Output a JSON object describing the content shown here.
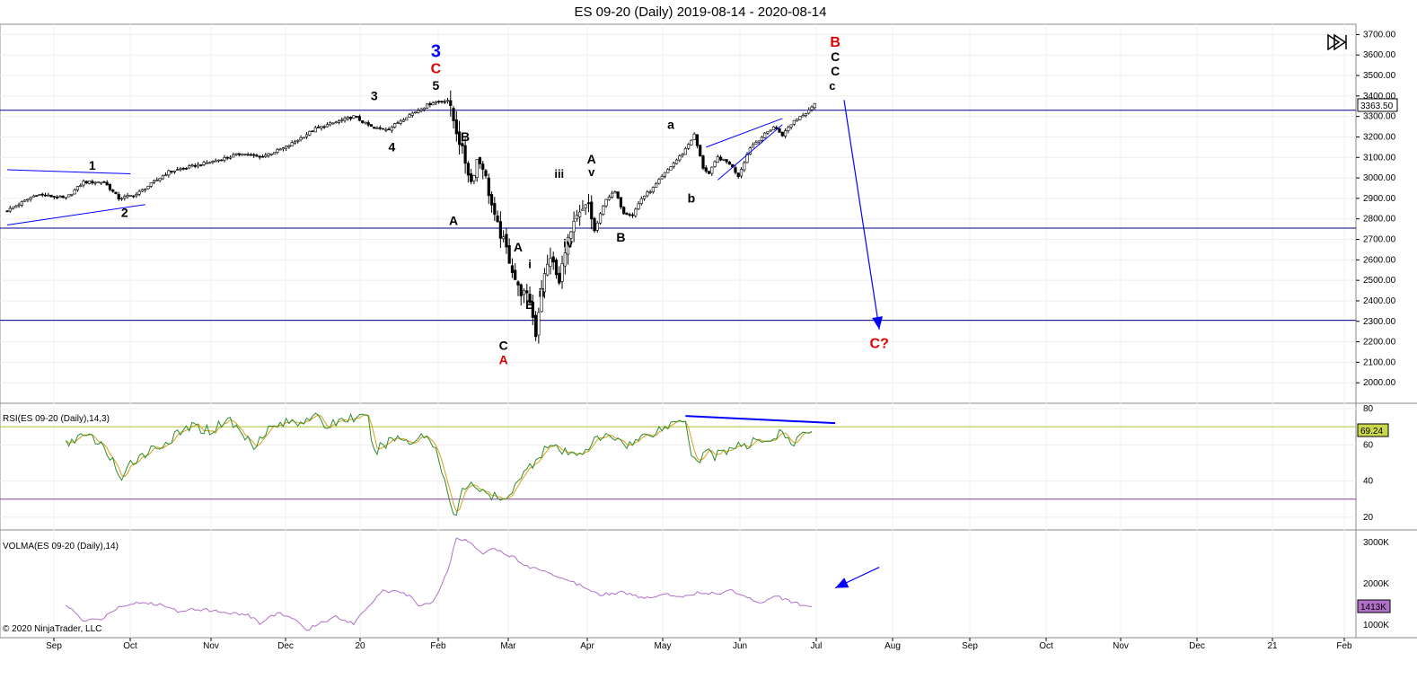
{
  "title": "ES 09-20 (Daily)  2019-08-14 - 2020-08-14",
  "copyright": "© 2020 NinjaTrader, LLC",
  "last_price_badge": "3363.50",
  "colors": {
    "candle_up": "#ffffff",
    "candle_down": "#000000",
    "hline": "#00008b",
    "annotation_blue": "#0000ff",
    "label_red": "#e00000",
    "label_black": "#000000",
    "rsi_line": "#2e8b2e",
    "rsi_avg": "#d4a017",
    "rsi_upper": "#b0c030",
    "rsi_lower": "#8040a0",
    "volma": "#b070c8"
  },
  "chart_data": [
    {
      "type": "candlestick",
      "name": "price",
      "ylim": [
        1900,
        3750
      ],
      "y_ticks": [
        "3700.00",
        "3600.00",
        "3500.00",
        "3400.00",
        "3300.00",
        "3200.00",
        "3100.00",
        "3000.00",
        "2900.00",
        "2800.00",
        "2700.00",
        "2600.00",
        "2500.00",
        "2400.00",
        "2300.00",
        "2200.00",
        "2100.00",
        "2000.00"
      ],
      "x_ticks": [
        "Sep",
        "Oct",
        "Nov",
        "Dec",
        "20",
        "Feb",
        "Mar",
        "Apr",
        "May",
        "Jun",
        "Jul",
        "Aug",
        "Sep",
        "Oct",
        "Nov",
        "Dec",
        "21",
        "Feb"
      ],
      "horizontal_lines": [
        3330,
        2755,
        2305
      ],
      "close_waypoints": [
        [
          0,
          2840
        ],
        [
          10,
          2920
        ],
        [
          20,
          2900
        ],
        [
          26,
          2980
        ],
        [
          33,
          2980
        ],
        [
          38,
          2900
        ],
        [
          44,
          2920
        ],
        [
          55,
          3030
        ],
        [
          70,
          3080
        ],
        [
          80,
          3120
        ],
        [
          86,
          3100
        ],
        [
          95,
          3150
        ],
        [
          105,
          3240
        ],
        [
          118,
          3300
        ],
        [
          125,
          3240
        ],
        [
          130,
          3240
        ],
        [
          136,
          3300
        ],
        [
          145,
          3370
        ],
        [
          150,
          3380
        ],
        [
          154,
          3180
        ],
        [
          158,
          2980
        ],
        [
          160,
          3090
        ],
        [
          162,
          3060
        ],
        [
          166,
          2800
        ],
        [
          170,
          2650
        ],
        [
          174,
          2460
        ],
        [
          178,
          2400
        ],
        [
          180,
          2240
        ],
        [
          182,
          2470
        ],
        [
          185,
          2620
        ],
        [
          188,
          2480
        ],
        [
          190,
          2660
        ],
        [
          194,
          2800
        ],
        [
          198,
          2870
        ],
        [
          200,
          2740
        ],
        [
          204,
          2900
        ],
        [
          207,
          2930
        ],
        [
          210,
          2830
        ],
        [
          213,
          2820
        ],
        [
          216,
          2900
        ],
        [
          220,
          2950
        ],
        [
          225,
          3040
        ],
        [
          230,
          3120
        ],
        [
          234,
          3210
        ],
        [
          237,
          3050
        ],
        [
          239,
          3020
        ],
        [
          242,
          3100
        ],
        [
          246,
          3070
        ],
        [
          249,
          3010
        ],
        [
          253,
          3150
        ],
        [
          257,
          3200
        ],
        [
          261,
          3250
        ],
        [
          264,
          3210
        ],
        [
          268,
          3280
        ],
        [
          272,
          3320
        ],
        [
          275,
          3363.5
        ]
      ],
      "labels": [
        {
          "text": "1",
          "t": 29,
          "v": 3040,
          "color": "black",
          "size": 14
        },
        {
          "text": "2",
          "t": 40,
          "v": 2810,
          "color": "black",
          "size": 14
        },
        {
          "text": "3",
          "t": 125,
          "v": 3380,
          "color": "black",
          "size": 14
        },
        {
          "text": "4",
          "t": 131,
          "v": 3130,
          "color": "black",
          "size": 14
        },
        {
          "text": "3",
          "t": 146,
          "v": 3590,
          "color": "blue",
          "size": 20
        },
        {
          "text": "C",
          "t": 146,
          "v": 3510,
          "color": "red",
          "size": 16
        },
        {
          "text": "5",
          "t": 146,
          "v": 3430,
          "color": "black",
          "size": 14
        },
        {
          "text": "B",
          "t": 156,
          "v": 3180,
          "color": "black",
          "size": 14
        },
        {
          "text": "A",
          "t": 152,
          "v": 2770,
          "color": "black",
          "size": 14
        },
        {
          "text": "A",
          "t": 174,
          "v": 2640,
          "color": "black",
          "size": 14
        },
        {
          "text": "i",
          "t": 178,
          "v": 2560,
          "color": "black",
          "size": 13
        },
        {
          "text": "ii",
          "t": 182,
          "v": 2420,
          "color": "black",
          "size": 13
        },
        {
          "text": "B",
          "t": 178,
          "v": 2360,
          "color": "black",
          "size": 14
        },
        {
          "text": "C",
          "t": 169,
          "v": 2160,
          "color": "black",
          "size": 14
        },
        {
          "text": "A",
          "t": 169,
          "v": 2090,
          "color": "red",
          "size": 14
        },
        {
          "text": "iii",
          "t": 188,
          "v": 3000,
          "color": "black",
          "size": 13
        },
        {
          "text": "iv",
          "t": 191,
          "v": 2660,
          "color": "black",
          "size": 13
        },
        {
          "text": "A",
          "t": 199,
          "v": 3070,
          "color": "black",
          "size": 14
        },
        {
          "text": "v",
          "t": 199,
          "v": 3010,
          "color": "black",
          "size": 13
        },
        {
          "text": "B",
          "t": 209,
          "v": 2690,
          "color": "black",
          "size": 14
        },
        {
          "text": "a",
          "t": 226,
          "v": 3240,
          "color": "black",
          "size": 14
        },
        {
          "text": "b",
          "t": 233,
          "v": 2880,
          "color": "black",
          "size": 14
        },
        {
          "text": "B",
          "t": 282,
          "v": 3640,
          "color": "red",
          "size": 16
        },
        {
          "text": "C",
          "t": 282,
          "v": 3570,
          "color": "black",
          "size": 14
        },
        {
          "text": "C",
          "t": 282,
          "v": 3500,
          "color": "black",
          "size": 14
        },
        {
          "text": "c",
          "t": 281,
          "v": 3430,
          "color": "black",
          "size": 13
        },
        {
          "text": "C?",
          "t": 297,
          "v": 2170,
          "color": "red",
          "size": 16
        }
      ],
      "trendlines": [
        {
          "from": [
            0,
            3040
          ],
          "to": [
            42,
            3020
          ]
        },
        {
          "from": [
            0,
            2770
          ],
          "to": [
            47,
            2870
          ]
        },
        {
          "from": [
            238,
            3150
          ],
          "to": [
            264,
            3290
          ]
        },
        {
          "from": [
            242,
            2990
          ],
          "to": [
            264,
            3260
          ]
        }
      ],
      "arrow": {
        "from": [
          285,
          3380
        ],
        "to": [
          297,
          2260
        ]
      }
    },
    {
      "type": "line",
      "name": "RSI(ES 09-20 (Daily),14,3)",
      "ylim": [
        13,
        83
      ],
      "y_ticks": [
        "80",
        "60",
        "40",
        "20"
      ],
      "horizontal_lines": [
        70,
        30
      ],
      "last_value": "69.24",
      "waypoints": [
        [
          20,
          60
        ],
        [
          24,
          65
        ],
        [
          30,
          63
        ],
        [
          36,
          52
        ],
        [
          39,
          38
        ],
        [
          42,
          50
        ],
        [
          46,
          55
        ],
        [
          55,
          62
        ],
        [
          62,
          70
        ],
        [
          70,
          68
        ],
        [
          75,
          75
        ],
        [
          80,
          66
        ],
        [
          84,
          60
        ],
        [
          88,
          68
        ],
        [
          94,
          72
        ],
        [
          100,
          73
        ],
        [
          104,
          77
        ],
        [
          108,
          70
        ],
        [
          114,
          74
        ],
        [
          118,
          75
        ],
        [
          123,
          74
        ],
        [
          125,
          55
        ],
        [
          128,
          60
        ],
        [
          132,
          64
        ],
        [
          138,
          62
        ],
        [
          142,
          66
        ],
        [
          146,
          58
        ],
        [
          149,
          42
        ],
        [
          151,
          25
        ],
        [
          153,
          20
        ],
        [
          155,
          35
        ],
        [
          158,
          40
        ],
        [
          162,
          33
        ],
        [
          166,
          31
        ],
        [
          170,
          28
        ],
        [
          173,
          40
        ],
        [
          176,
          44
        ],
        [
          180,
          52
        ],
        [
          184,
          60
        ],
        [
          189,
          56
        ],
        [
          193,
          54
        ],
        [
          197,
          58
        ],
        [
          201,
          63
        ],
        [
          206,
          65
        ],
        [
          212,
          60
        ],
        [
          218,
          66
        ],
        [
          223,
          69
        ],
        [
          228,
          73
        ],
        [
          231,
          75
        ],
        [
          233,
          55
        ],
        [
          236,
          52
        ],
        [
          238,
          58
        ],
        [
          241,
          54
        ],
        [
          244,
          56
        ],
        [
          248,
          60
        ],
        [
          252,
          58
        ],
        [
          256,
          64
        ],
        [
          260,
          62
        ],
        [
          263,
          67
        ],
        [
          267,
          60
        ],
        [
          270,
          64
        ],
        [
          274,
          69.24
        ]
      ],
      "trendline": {
        "from": [
          231,
          76
        ],
        "to": [
          282,
          72
        ]
      }
    },
    {
      "type": "line",
      "name": "VOLMA(ES 09-20 (Daily),14)",
      "ylim": [
        700,
        3300
      ],
      "y_ticks": [
        "3000K",
        "2000K",
        "1000K"
      ],
      "last_value": "1413K",
      "waypoints": [
        [
          20,
          1500
        ],
        [
          26,
          1100
        ],
        [
          32,
          1150
        ],
        [
          38,
          1450
        ],
        [
          44,
          1550
        ],
        [
          52,
          1500
        ],
        [
          58,
          1350
        ],
        [
          64,
          1400
        ],
        [
          70,
          1350
        ],
        [
          76,
          1300
        ],
        [
          82,
          1250
        ],
        [
          86,
          1050
        ],
        [
          92,
          1300
        ],
        [
          98,
          1150
        ],
        [
          102,
          850
        ],
        [
          106,
          1050
        ],
        [
          112,
          1200
        ],
        [
          118,
          1050
        ],
        [
          124,
          1550
        ],
        [
          128,
          1850
        ],
        [
          132,
          1800
        ],
        [
          136,
          1750
        ],
        [
          140,
          1500
        ],
        [
          145,
          1550
        ],
        [
          150,
          2300
        ],
        [
          153,
          3100
        ],
        [
          158,
          3000
        ],
        [
          162,
          2750
        ],
        [
          166,
          2850
        ],
        [
          172,
          2650
        ],
        [
          178,
          2400
        ],
        [
          184,
          2300
        ],
        [
          190,
          2100
        ],
        [
          196,
          1950
        ],
        [
          202,
          1750
        ],
        [
          210,
          1800
        ],
        [
          216,
          1650
        ],
        [
          224,
          1750
        ],
        [
          230,
          1700
        ],
        [
          236,
          1800
        ],
        [
          242,
          1750
        ],
        [
          246,
          1850
        ],
        [
          250,
          1750
        ],
        [
          256,
          1550
        ],
        [
          262,
          1700
        ],
        [
          268,
          1550
        ],
        [
          274,
          1413
        ]
      ],
      "arrow": {
        "from": [
          297,
          2400
        ],
        "to": [
          282,
          1900
        ]
      }
    }
  ]
}
